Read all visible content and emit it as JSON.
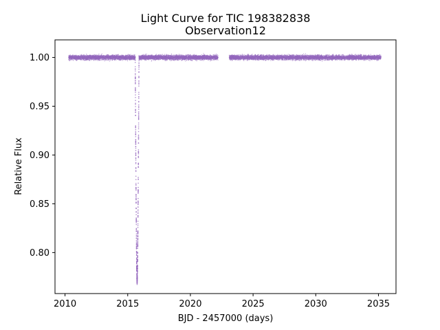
{
  "chart_data": {
    "type": "scatter",
    "title": "Light Curve for TIC 198382838",
    "subtitle": "Observation12",
    "xlabel": "BJD - 2457000 (days)",
    "ylabel": "Relative Flux",
    "xlim": [
      2009.2,
      2036.4
    ],
    "ylim": [
      0.758,
      1.018
    ],
    "xticks": [
      2010,
      2015,
      2020,
      2025,
      2030,
      2035
    ],
    "yticks": [
      0.8,
      0.85,
      0.9,
      0.95,
      1.0
    ],
    "xtick_labels": [
      "2010",
      "2015",
      "2020",
      "2025",
      "2030",
      "2035"
    ],
    "ytick_labels": [
      "0.80",
      "0.85",
      "0.90",
      "0.95",
      "1.00"
    ],
    "grid": false,
    "legend": "none",
    "point_color": "#9467bd",
    "baseline_flux": 1.0,
    "baseline_scatter": 0.002,
    "observed_segments": [
      {
        "x_start": 2010.3,
        "x_end": 2015.6
      },
      {
        "x_start": 2015.9,
        "x_end": 2022.2
      },
      {
        "x_start": 2023.1,
        "x_end": 2035.2
      }
    ],
    "transit": {
      "x_start": 2015.6,
      "x_mid": 2015.75,
      "x_end": 2015.9,
      "min_flux": 0.769
    }
  }
}
